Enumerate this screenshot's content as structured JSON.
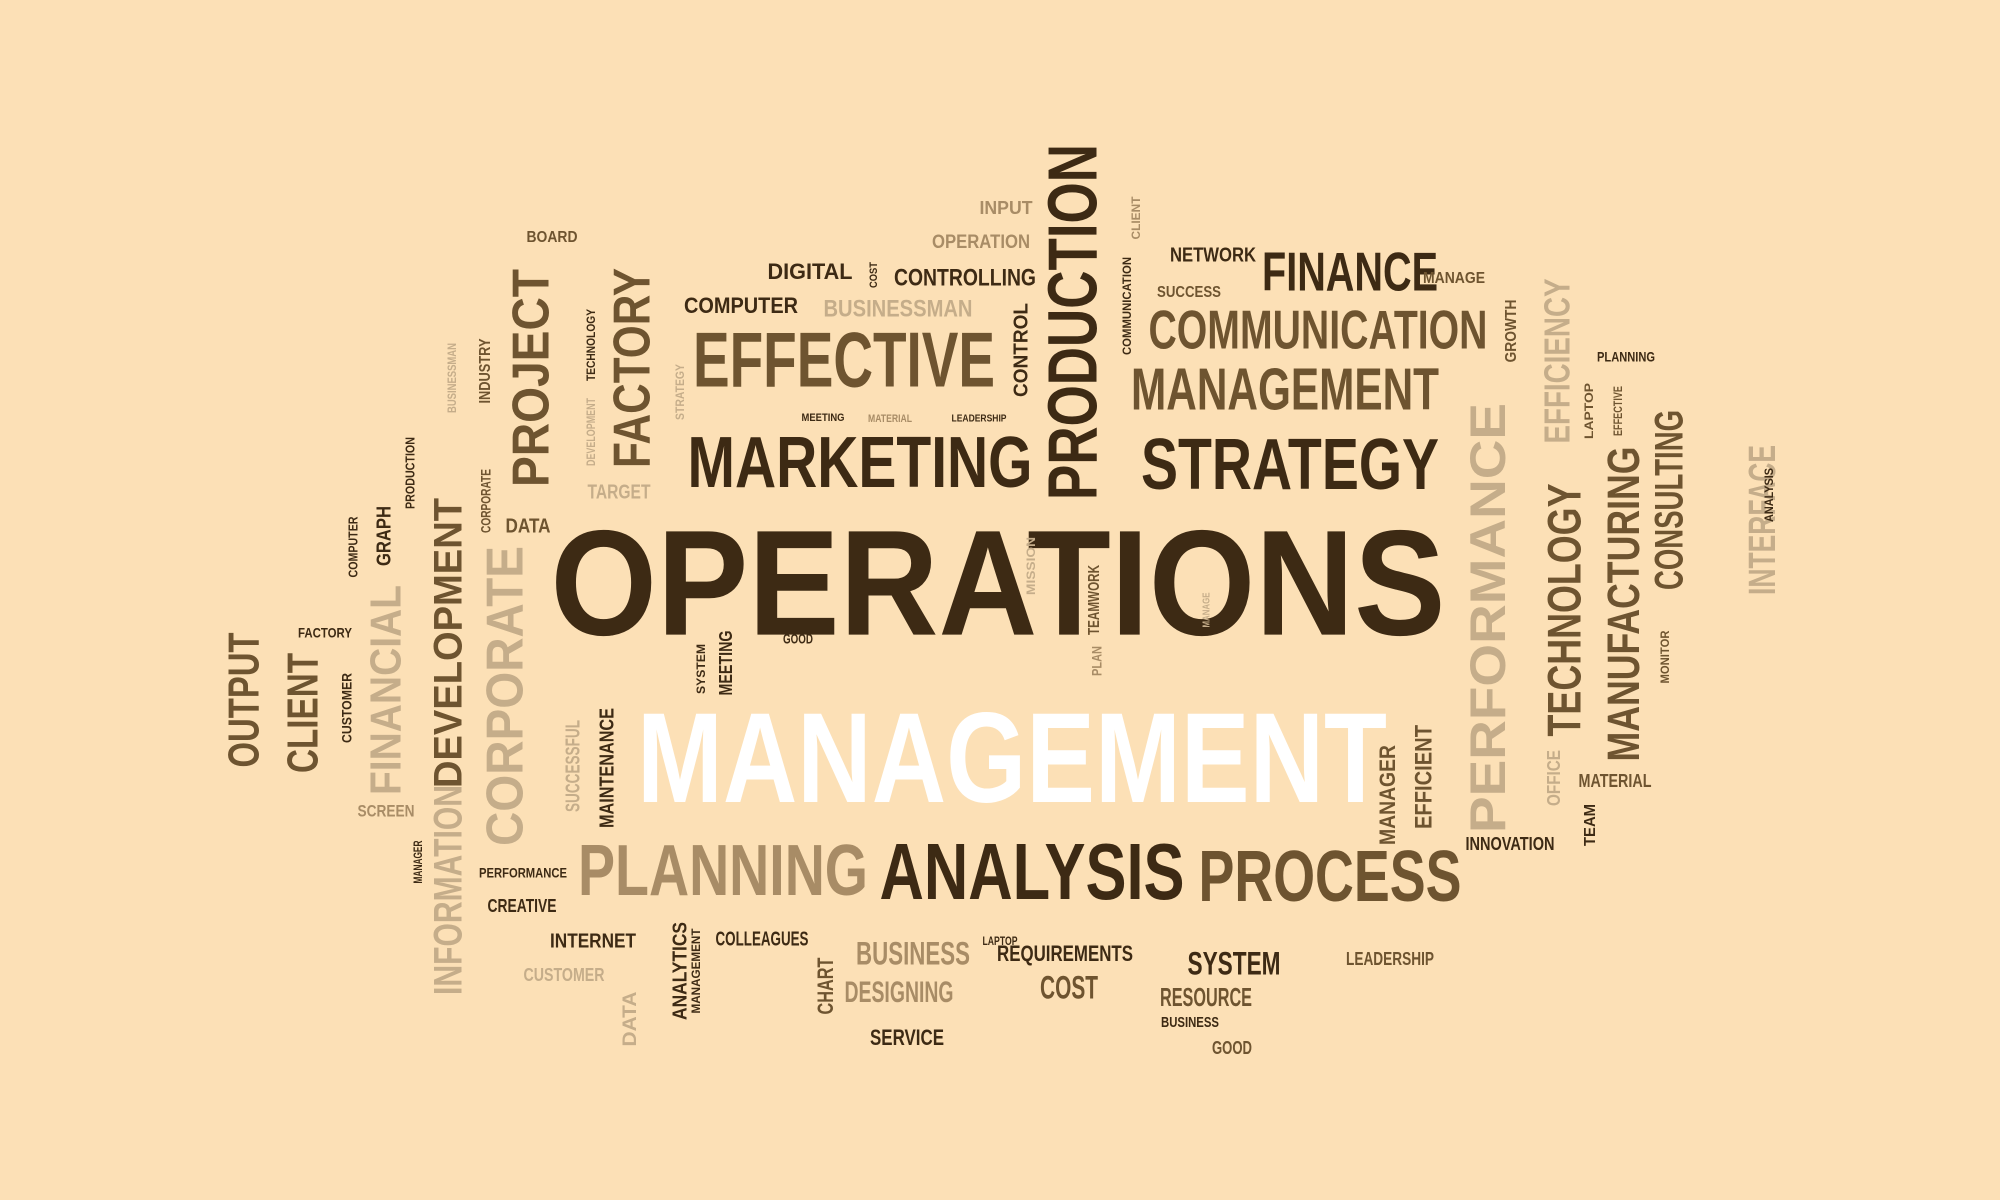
{
  "palette": {
    "background": "#fce0b6",
    "dark": "#3d2a14",
    "medium": "#6e5430",
    "light": "#a88c66",
    "pale": "#c5ad8a",
    "white": "#ffffff"
  },
  "words": [
    {
      "text": "OPERATIONS",
      "tone": "dark"
    },
    {
      "text": "MANAGEMENT",
      "tone": "white"
    },
    {
      "text": "MARKETING",
      "tone": "dark"
    },
    {
      "text": "STRATEGY",
      "tone": "dark"
    },
    {
      "text": "EFFECTIVE",
      "tone": "medium"
    },
    {
      "text": "PRODUCTION",
      "tone": "dark"
    },
    {
      "text": "FINANCE",
      "tone": "dark"
    },
    {
      "text": "COMMUNICATION",
      "tone": "medium"
    },
    {
      "text": "MANAGEMENT",
      "tone": "medium"
    },
    {
      "text": "PROJECT",
      "tone": "medium"
    },
    {
      "text": "FACTORY",
      "tone": "medium"
    },
    {
      "text": "PLANNING",
      "tone": "light"
    },
    {
      "text": "ANALYSIS",
      "tone": "dark"
    },
    {
      "text": "PROCESS",
      "tone": "medium"
    },
    {
      "text": "PERFORMANCE",
      "tone": "pale"
    },
    {
      "text": "TECHNOLOGY",
      "tone": "medium"
    },
    {
      "text": "MANUFACTURING",
      "tone": "medium"
    },
    {
      "text": "CONSULTING",
      "tone": "medium"
    },
    {
      "text": "INTERFACE",
      "tone": "pale"
    },
    {
      "text": "EFFICIENCY",
      "tone": "pale"
    },
    {
      "text": "CORPORATE",
      "tone": "pale"
    },
    {
      "text": "DEVELOPMENT",
      "tone": "medium"
    },
    {
      "text": "FINANCIAL",
      "tone": "pale"
    },
    {
      "text": "INFORMATION",
      "tone": "pale"
    },
    {
      "text": "CLIENT",
      "tone": "medium"
    },
    {
      "text": "OUTPUT",
      "tone": "medium"
    },
    {
      "text": "DIGITAL",
      "tone": "dark"
    },
    {
      "text": "CONTROLLING",
      "tone": "dark"
    },
    {
      "text": "COMPUTER",
      "tone": "dark"
    },
    {
      "text": "BUSINESSMAN",
      "tone": "pale"
    },
    {
      "text": "INPUT",
      "tone": "light"
    },
    {
      "text": "OPERATION",
      "tone": "light"
    },
    {
      "text": "NETWORK",
      "tone": "dark"
    },
    {
      "text": "SUCCESS",
      "tone": "medium"
    },
    {
      "text": "MANAGE",
      "tone": "medium"
    },
    {
      "text": "GROWTH",
      "tone": "medium"
    },
    {
      "text": "BOARD",
      "tone": "medium"
    },
    {
      "text": "INDUSTRY",
      "tone": "medium"
    },
    {
      "text": "TECHNOLOGY",
      "tone": "dark"
    },
    {
      "text": "BUSINESSMAN",
      "tone": "pale"
    },
    {
      "text": "STRATEGY",
      "tone": "pale"
    },
    {
      "text": "DEVELOPMENT",
      "tone": "pale"
    },
    {
      "text": "TARGET",
      "tone": "pale"
    },
    {
      "text": "DATA",
      "tone": "medium"
    },
    {
      "text": "CORPORATE",
      "tone": "medium"
    },
    {
      "text": "PRODUCTION",
      "tone": "dark"
    },
    {
      "text": "GRAPH",
      "tone": "dark"
    },
    {
      "text": "COMPUTER",
      "tone": "dark"
    },
    {
      "text": "FACTORY",
      "tone": "dark"
    },
    {
      "text": "CUSTOMER",
      "tone": "dark"
    },
    {
      "text": "SCREEN",
      "tone": "light"
    },
    {
      "text": "MANAGER",
      "tone": "dark"
    },
    {
      "text": "PERFORMANCE",
      "tone": "dark"
    },
    {
      "text": "CREATIVE",
      "tone": "dark"
    },
    {
      "text": "INTERNET",
      "tone": "dark"
    },
    {
      "text": "CUSTOMER",
      "tone": "pale"
    },
    {
      "text": "DATA",
      "tone": "pale"
    },
    {
      "text": "ANALYTICS",
      "tone": "dark"
    },
    {
      "text": "MANAGEMENT",
      "tone": "dark"
    },
    {
      "text": "COLLEAGUES",
      "tone": "dark"
    },
    {
      "text": "BUSINESS",
      "tone": "light"
    },
    {
      "text": "DESIGNING",
      "tone": "light"
    },
    {
      "text": "CHART",
      "tone": "medium"
    },
    {
      "text": "LAPTOP",
      "tone": "dark"
    },
    {
      "text": "SERVICE",
      "tone": "dark"
    },
    {
      "text": "REQUIREMENTS",
      "tone": "dark"
    },
    {
      "text": "COST",
      "tone": "medium"
    },
    {
      "text": "SYSTEM",
      "tone": "dark"
    },
    {
      "text": "RESOURCE",
      "tone": "medium"
    },
    {
      "text": "BUSINESS",
      "tone": "dark"
    },
    {
      "text": "GOOD",
      "tone": "medium"
    },
    {
      "text": "LEADERSHIP",
      "tone": "medium"
    },
    {
      "text": "INNOVATION",
      "tone": "dark"
    },
    {
      "text": "TEAM",
      "tone": "dark"
    },
    {
      "text": "MATERIAL",
      "tone": "medium"
    },
    {
      "text": "OFFICE",
      "tone": "pale"
    },
    {
      "text": "MANAGER",
      "tone": "medium"
    },
    {
      "text": "EFFICIENT",
      "tone": "medium"
    },
    {
      "text": "MAINTENANCE",
      "tone": "dark"
    },
    {
      "text": "SUCCESSFUL",
      "tone": "pale"
    },
    {
      "text": "MEETING",
      "tone": "dark"
    },
    {
      "text": "SYSTEM",
      "tone": "dark"
    },
    {
      "text": "GOOD",
      "tone": "dark"
    },
    {
      "text": "MISSION",
      "tone": "pale"
    },
    {
      "text": "TEAMWORK",
      "tone": "medium"
    },
    {
      "text": "PLAN",
      "tone": "light"
    },
    {
      "text": "MANAGE",
      "tone": "pale"
    },
    {
      "text": "MEETING",
      "tone": "dark"
    },
    {
      "text": "MATERIAL",
      "tone": "light"
    },
    {
      "text": "LEADERSHIP",
      "tone": "dark"
    },
    {
      "text": "CONTROL",
      "tone": "dark"
    },
    {
      "text": "COST",
      "tone": "dark"
    },
    {
      "text": "COMMUNICATION",
      "tone": "dark"
    },
    {
      "text": "CLIENT",
      "tone": "light"
    },
    {
      "text": "PLANNING",
      "tone": "dark"
    },
    {
      "text": "LAPTOP",
      "tone": "medium"
    },
    {
      "text": "EFFECTIVE",
      "tone": "medium"
    },
    {
      "text": "MONITOR",
      "tone": "medium"
    },
    {
      "text": "ANALYSIS",
      "tone": "dark"
    }
  ]
}
